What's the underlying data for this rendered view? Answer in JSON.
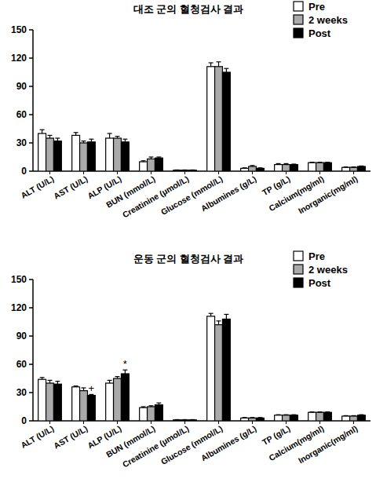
{
  "chart_data": [
    {
      "type": "bar",
      "title": "대조 군의 혈청검사 결과",
      "categories": [
        "ALT (U/L)",
        "AST (U/L)",
        "ALP (U/L)",
        "BUN (mmol/L)",
        "Creatinine (μmol/L)",
        "Glucose (mmol/L)",
        "Albumines (g/L)",
        "TP (g/L)",
        "Calcium(mg/ml)",
        "Inorganic(mg/ml)"
      ],
      "series": [
        {
          "name": "Pre",
          "color": "#ffffff",
          "values": [
            40,
            38,
            35,
            10,
            1,
            111,
            3,
            7,
            9,
            4
          ],
          "errors": [
            4,
            3,
            5,
            1,
            0.3,
            4,
            0.5,
            1,
            0.5,
            0.5
          ]
        },
        {
          "name": "2 weeks",
          "color": "#aaaaaa",
          "values": [
            35,
            30,
            35,
            13,
            1,
            111,
            5,
            7,
            9,
            4
          ],
          "errors": [
            3,
            2,
            2,
            2,
            0.3,
            5,
            1,
            1,
            0.5,
            0.5
          ]
        },
        {
          "name": "Post",
          "color": "#000000",
          "values": [
            32,
            31,
            31,
            14,
            1,
            105,
            3,
            7,
            9,
            5
          ],
          "errors": [
            3,
            3,
            3,
            1,
            0.3,
            4,
            0.5,
            0.5,
            0.5,
            0.5
          ]
        }
      ],
      "ylim": [
        0,
        150
      ],
      "yticks": [
        0,
        30,
        60,
        90,
        120,
        150
      ],
      "grid": false,
      "legend": "top-right"
    },
    {
      "type": "bar",
      "title": "운동 군의 혈청검사 결과",
      "categories": [
        "ALT (U/L)",
        "AST (U/L)",
        "ALP (U/L)",
        "BUN (mmol/L)",
        "Creatinine (μmol/L)",
        "Glucose (mmol/L)",
        "Albumines (g/L)",
        "TP (g/L)",
        "Calcium(mg/ml)",
        "Inorganic(mg/ml)"
      ],
      "series": [
        {
          "name": "Pre",
          "color": "#ffffff",
          "values": [
            44,
            36,
            40,
            14,
            1,
            111,
            3,
            6,
            9,
            5
          ],
          "errors": [
            2,
            1,
            3,
            1,
            0.3,
            3,
            0.5,
            0.5,
            0.5,
            0.5
          ]
        },
        {
          "name": "2 weeks",
          "color": "#aaaaaa",
          "values": [
            40,
            32,
            45,
            15,
            1,
            102,
            3,
            6,
            9,
            5
          ],
          "errors": [
            3,
            3,
            2,
            1,
            0.3,
            4,
            0.5,
            0.5,
            0.5,
            0.5
          ]
        },
        {
          "name": "Post",
          "color": "#000000",
          "values": [
            39,
            27,
            50,
            17,
            1,
            108,
            3,
            6,
            9,
            6
          ],
          "errors": [
            3,
            1,
            4,
            2,
            0.3,
            5,
            0.5,
            0.5,
            0.5,
            0.5
          ]
        }
      ],
      "annotations": [
        {
          "text": "+",
          "category": "AST (U/L)",
          "series": "Post"
        },
        {
          "text": "*",
          "category": "ALP (U/L)",
          "series": "Post"
        }
      ],
      "ylim": [
        0,
        150
      ],
      "yticks": [
        0,
        30,
        60,
        90,
        120,
        150
      ],
      "grid": false,
      "legend": "top-right"
    }
  ]
}
